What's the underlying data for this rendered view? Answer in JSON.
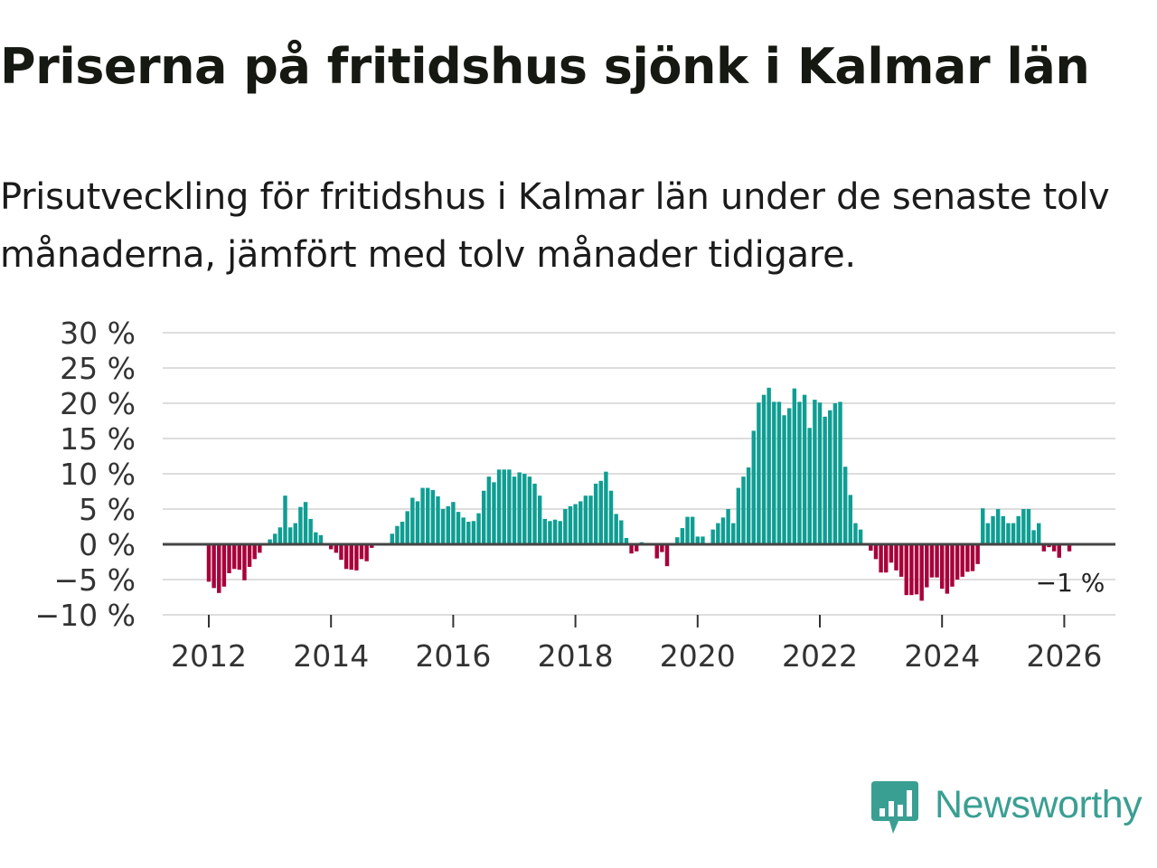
{
  "header": {
    "title": "Priserna på fritidshus sjönk i Kalmar län",
    "subtitle": "Prisutveckling för fritidshus i Kalmar län under de senaste tolv månaderna, jämfört med tolv månader tidigare."
  },
  "brand": {
    "name": "Newsworthy",
    "icon": "newsworthy-logo-icon"
  },
  "colors": {
    "positive": "#0f9e93",
    "negative": "#a8003a",
    "grid": "#dddddd",
    "zero_line": "#444444"
  },
  "chart_data": {
    "type": "bar",
    "title": "Priserna på fritidshus sjönk i Kalmar län",
    "xlabel": "",
    "ylabel": "",
    "ylim": [
      -10,
      30
    ],
    "yticks": [
      -10,
      -5,
      0,
      5,
      10,
      15,
      20,
      25,
      30
    ],
    "ytick_labels": [
      "−10 %",
      "−5 %",
      "0 %",
      "5 %",
      "10 %",
      "15 %",
      "20 %",
      "25 %",
      "30 %"
    ],
    "xticks": [
      2012,
      2014,
      2016,
      2018,
      2020,
      2022,
      2024,
      2026
    ],
    "xtick_labels": [
      "2012",
      "2014",
      "2016",
      "2018",
      "2020",
      "2022",
      "2024",
      "2026"
    ],
    "start": "2012-01",
    "last_label": "−1 %",
    "values": [
      -5.3,
      -6.2,
      -6.9,
      -6.0,
      -4.1,
      -3.5,
      -3.6,
      -5.1,
      -3.2,
      -2.1,
      -1.2,
      0.0,
      0.7,
      1.5,
      2.4,
      6.9,
      2.4,
      3.0,
      5.3,
      6.0,
      3.6,
      1.7,
      1.3,
      0.0,
      -0.7,
      -1.2,
      -2.2,
      -3.5,
      -3.6,
      -3.7,
      -2.1,
      -2.4,
      -0.5,
      0.0,
      0.0,
      0.0,
      1.5,
      2.6,
      3.2,
      4.7,
      6.6,
      6.1,
      8.0,
      8.0,
      7.7,
      6.8,
      5.0,
      5.4,
      6.0,
      4.6,
      3.8,
      3.2,
      3.3,
      4.4,
      7.6,
      9.6,
      8.8,
      10.6,
      10.6,
      10.6,
      9.6,
      10.2,
      10.0,
      9.6,
      8.6,
      6.9,
      3.6,
      3.3,
      3.5,
      3.3,
      5.0,
      5.4,
      5.7,
      6.1,
      6.9,
      6.9,
      8.6,
      9.0,
      10.3,
      7.6,
      4.3,
      3.4,
      0.9,
      -1.3,
      -1.0,
      0.3,
      0.2,
      0.0,
      -2.0,
      -1.1,
      -3.1,
      0.0,
      1.0,
      2.3,
      3.9,
      3.9,
      1.1,
      1.1,
      0.0,
      2.1,
      3.0,
      3.8,
      5.0,
      3.0,
      8.0,
      9.6,
      10.9,
      16.1,
      20.1,
      21.2,
      22.2,
      20.2,
      20.2,
      18.3,
      19.3,
      22.1,
      20.2,
      21.2,
      16.5,
      20.5,
      20.1,
      18.1,
      19.0,
      20.0,
      20.2,
      11.0,
      7.0,
      3.0,
      2.1,
      0.0,
      -0.9,
      -2.1,
      -4.0,
      -4.0,
      -2.6,
      -3.7,
      -4.6,
      -7.2,
      -7.2,
      -7.1,
      -8.0,
      -6.1,
      -4.7,
      -4.7,
      -6.3,
      -7.0,
      -6.0,
      -5.0,
      -4.6,
      -3.9,
      -3.8,
      -2.8,
      5.1,
      3.0,
      4.0,
      5.0,
      4.0,
      3.0,
      3.0,
      4.0,
      5.0,
      5.0,
      2.0,
      3.0,
      -1.0,
      -0.4,
      -1.0,
      -1.9,
      -0.1,
      -1.0
    ]
  }
}
